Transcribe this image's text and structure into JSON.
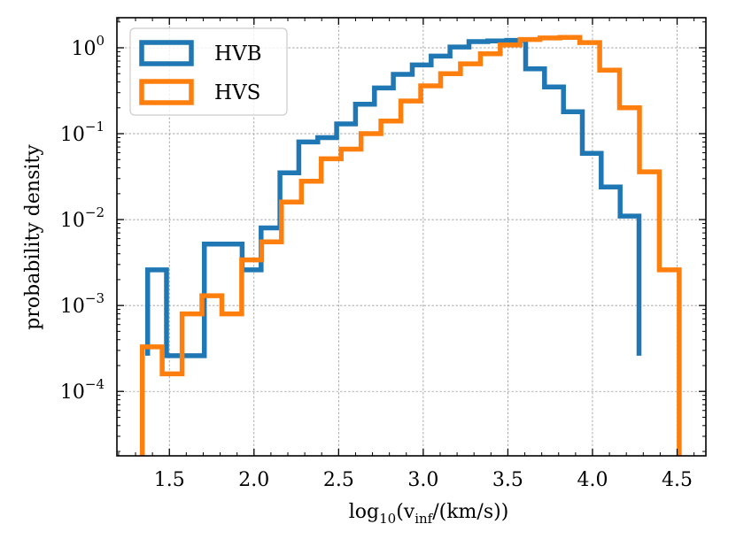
{
  "chart_data": {
    "type": "histogram",
    "title": "",
    "xlabel_base": "log",
    "xlabel_sub": "10",
    "xlabel_open": "(v",
    "xlabel_vsub": "inf",
    "xlabel_close": "/(km/s))",
    "ylabel": "probability density",
    "xlim": [
      1.19,
      4.67
    ],
    "ylim_log10": [
      -4.75,
      0.35
    ],
    "x_ticks": [
      1.5,
      2.0,
      2.5,
      3.0,
      3.5,
      4.0,
      4.5
    ],
    "x_tick_labels": [
      "1.5",
      "2.0",
      "2.5",
      "3.0",
      "3.5",
      "4.0",
      "4.5"
    ],
    "y_ticks_exp": [
      -4,
      -3,
      -2,
      -1,
      0
    ],
    "y_tick_base": "10",
    "y_tick_exp_labels": [
      "−4",
      "−3",
      "−2",
      "−1",
      "0"
    ],
    "grid": true,
    "legend_position": "top-left",
    "series": [
      {
        "name": "HVB",
        "color": "#1f77b4",
        "edges": [
          1.3717,
          1.4833,
          1.595,
          1.7067,
          1.8183,
          1.93,
          2.0417,
          2.1533,
          2.265,
          2.3767,
          2.4883,
          2.6,
          2.7117,
          2.8233,
          2.935,
          3.0467,
          3.1583,
          3.27,
          3.3817,
          3.4933,
          3.605,
          3.7167,
          3.8283,
          3.94,
          4.0517,
          4.1633,
          4.275
        ],
        "values": [
          0.0026,
          0.00026,
          0.00026,
          0.0052,
          0.0052,
          0.0026,
          0.008,
          0.035,
          0.08,
          0.09,
          0.13,
          0.22,
          0.34,
          0.49,
          0.63,
          0.8,
          1.02,
          1.18,
          1.2,
          1.22,
          0.57,
          0.35,
          0.18,
          0.059,
          0.024,
          0.011
        ],
        "tail_floor": 0.00026
      },
      {
        "name": "HVS",
        "color": "#ff7f0e",
        "edges": [
          1.34,
          1.4575,
          1.575,
          1.6925,
          1.81,
          1.9275,
          2.045,
          2.1625,
          2.28,
          2.3975,
          2.515,
          2.6325,
          2.75,
          2.8675,
          2.985,
          3.1025,
          3.22,
          3.3375,
          3.455,
          3.5725,
          3.69,
          3.8075,
          3.925,
          4.0425,
          4.16,
          4.2775,
          4.395,
          4.5125
        ],
        "values": [
          0.00033,
          0.00016,
          0.0008,
          0.0013,
          0.0008,
          0.0034,
          0.0055,
          0.016,
          0.028,
          0.051,
          0.066,
          0.1,
          0.14,
          0.24,
          0.36,
          0.5,
          0.65,
          0.85,
          1.08,
          1.25,
          1.3,
          1.32,
          1.15,
          0.55,
          0.2,
          0.036,
          0.0026
        ],
        "tail_floor": 1e-06
      }
    ]
  }
}
